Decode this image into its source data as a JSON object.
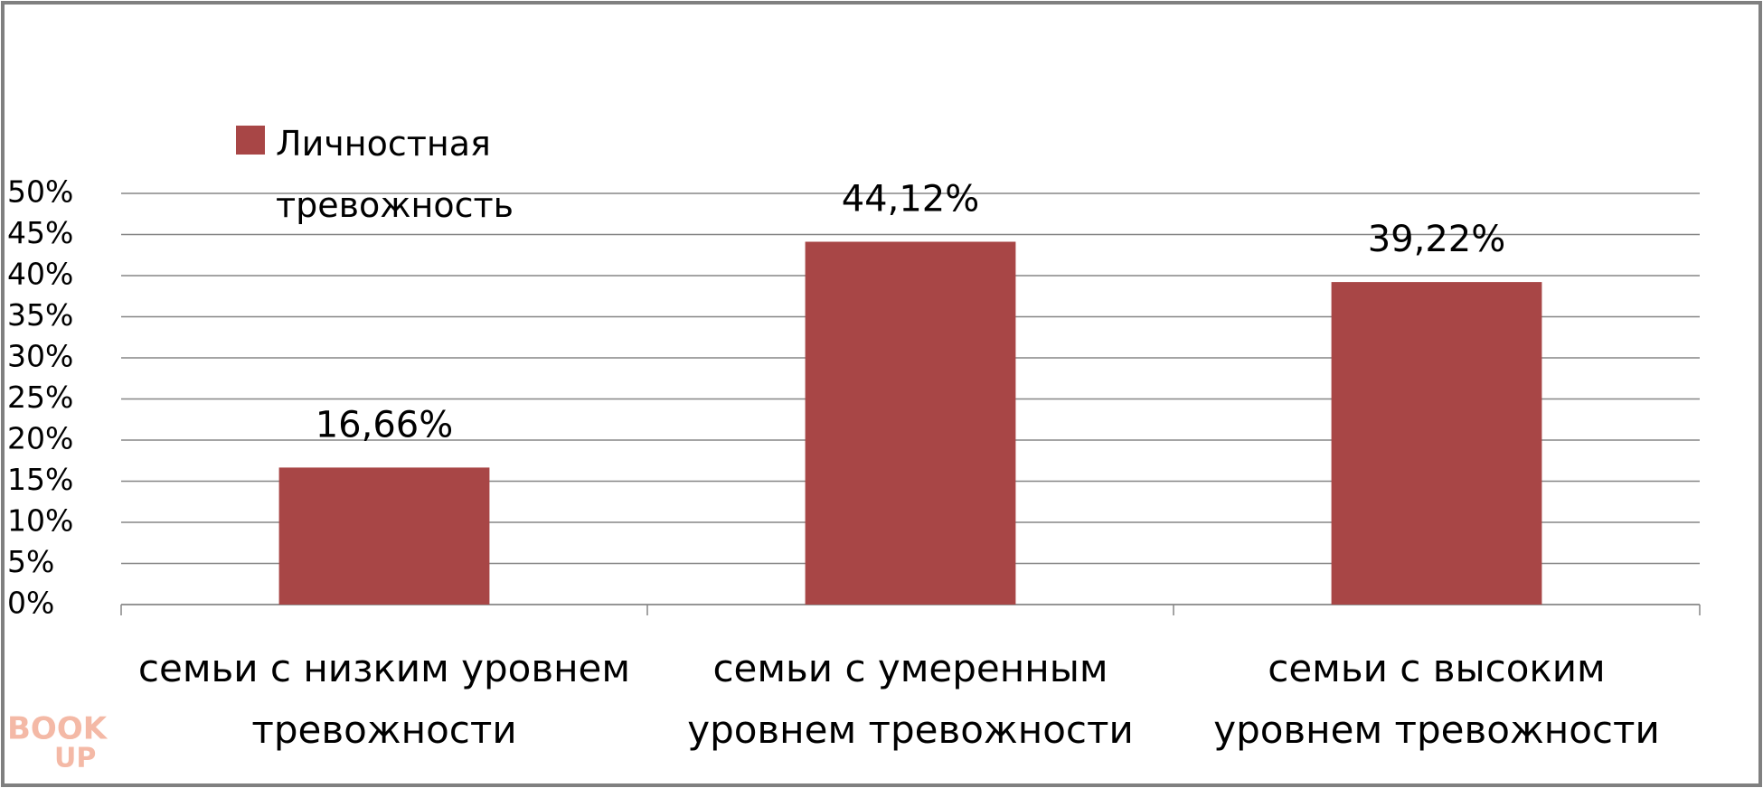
{
  "chart_data": {
    "type": "bar",
    "categories": [
      "семьи с низким уровнем тревожности",
      "семьи с умеренным уровнем тревожности",
      "семьи с высоким уровнем тревожности"
    ],
    "series": [
      {
        "name": "Личностная тревожность",
        "color": "#a84646",
        "values": [
          16.66,
          44.12,
          39.22
        ],
        "value_labels": [
          "16,66%",
          "44,12%",
          "39,22%"
        ]
      }
    ],
    "ylim": [
      0,
      50
    ],
    "yticks": [
      {
        "value": 0,
        "label": "0%"
      },
      {
        "value": 5,
        "label": "5%"
      },
      {
        "value": 10,
        "label": "10%"
      },
      {
        "value": 15,
        "label": "15%"
      },
      {
        "value": 20,
        "label": "20%"
      },
      {
        "value": 25,
        "label": "25%"
      },
      {
        "value": 30,
        "label": "30%"
      },
      {
        "value": 35,
        "label": "35%"
      },
      {
        "value": 40,
        "label": "40%"
      },
      {
        "value": 45,
        "label": "45%"
      },
      {
        "value": 50,
        "label": "50%"
      }
    ],
    "grid": true,
    "legend": "top-left"
  },
  "watermark": [
    "BOOK",
    "UP"
  ]
}
